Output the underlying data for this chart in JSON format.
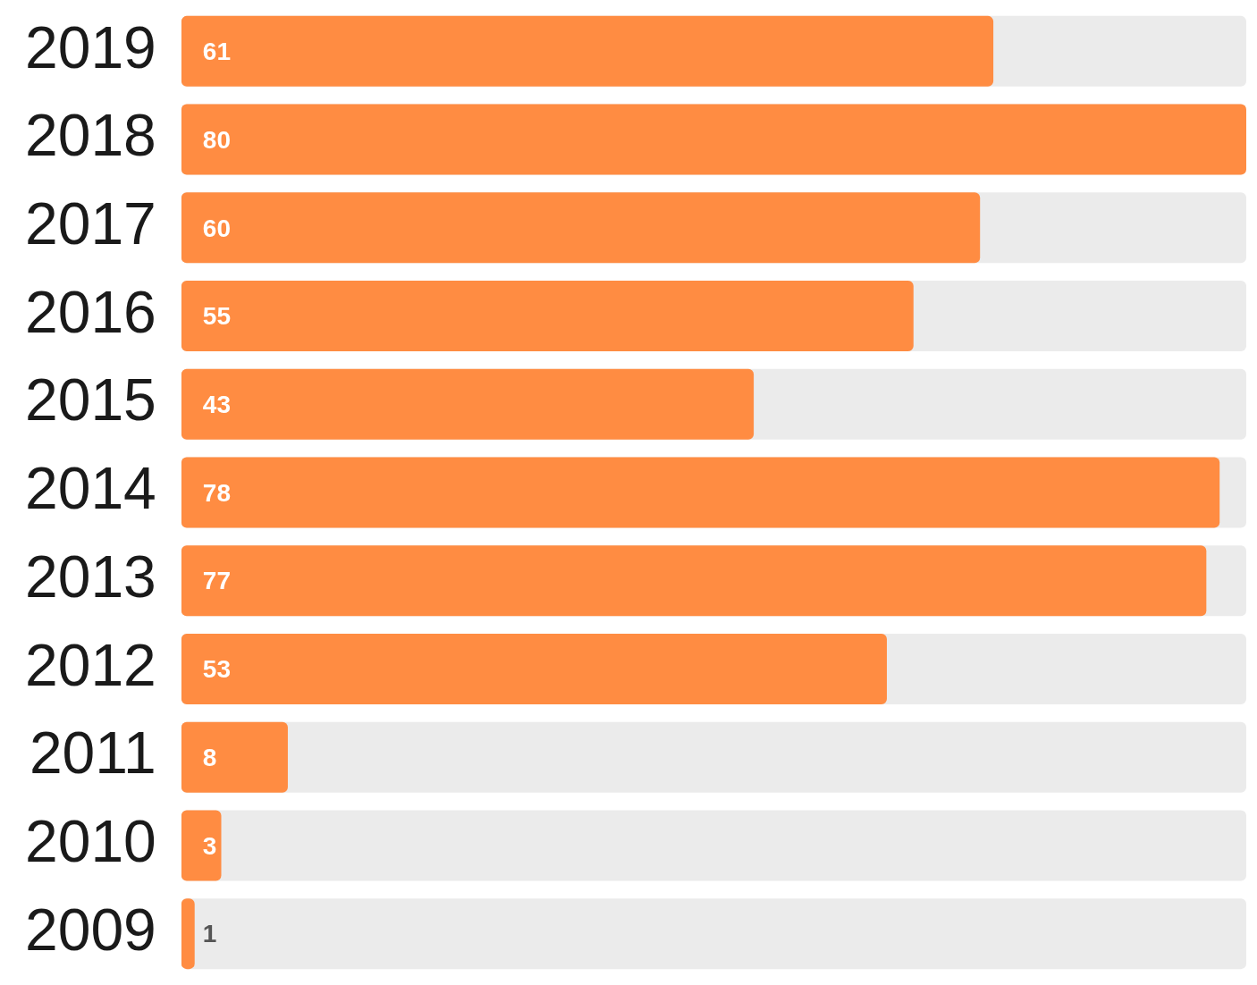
{
  "chart_data": {
    "type": "bar",
    "orientation": "horizontal",
    "categories": [
      "2019",
      "2018",
      "2017",
      "2016",
      "2015",
      "2014",
      "2013",
      "2012",
      "2011",
      "2010",
      "2009"
    ],
    "values": [
      61,
      80,
      60,
      55,
      43,
      78,
      77,
      53,
      8,
      3,
      1
    ],
    "color": "#ff8c42",
    "data_labels": true,
    "legend": false,
    "tick_labels": "y"
  }
}
